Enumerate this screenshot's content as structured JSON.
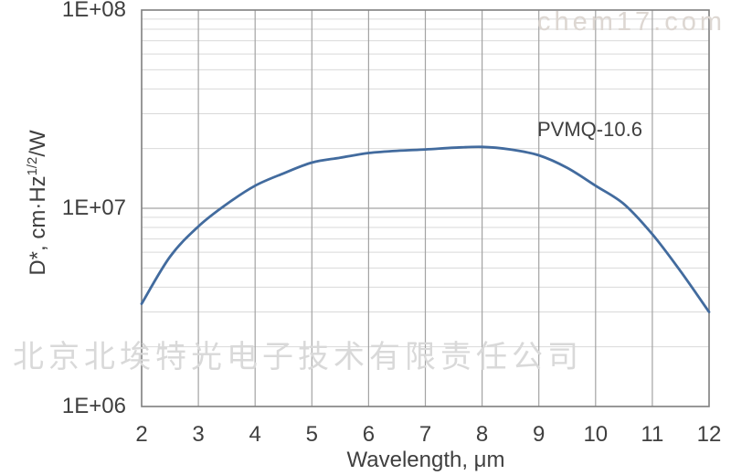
{
  "page": {
    "background": "#ffffff"
  },
  "watermarks": {
    "site": "chem17.com",
    "company": "北京北埃特光电子技术有限责任公司"
  },
  "annotation": {
    "label": "PVMQ-10.6"
  },
  "axis_titles": {
    "x": "Wavelength, μm",
    "y_pre": "D*, cm·Hz",
    "y_sup": "1/2",
    "y_post": "/W"
  },
  "colors": {
    "curve": "#426b9e",
    "grid_minor": "#d9d9d9",
    "grid_major": "#a3a3a3",
    "plot_border": "#7f7f7f",
    "text": "#3f3f3f",
    "watermark_site": "#ddd7d2",
    "watermark_company": "#d9d9d9"
  },
  "chart_data": {
    "type": "line",
    "title": "",
    "xlabel": "Wavelength, μm",
    "ylabel": "D*, cm·Hz^(1/2)/W",
    "x_scale": "linear",
    "y_scale": "log",
    "xlim": [
      2,
      12
    ],
    "ylim": [
      1000000.0,
      100000000.0
    ],
    "x_ticks": [
      2,
      3,
      4,
      5,
      6,
      7,
      8,
      9,
      10,
      11,
      12
    ],
    "y_ticks": [
      {
        "value": 1000000.0,
        "label": "1E+06"
      },
      {
        "value": 10000000.0,
        "label": "1E+07"
      },
      {
        "value": 100000000.0,
        "label": "1E+08"
      }
    ],
    "grid": "major+minor",
    "legend": "none",
    "annotation": "PVMQ-10.6",
    "series": [
      {
        "name": "PVMQ-10.6",
        "x": [
          2,
          2.5,
          3,
          3.5,
          4,
          4.5,
          5,
          5.5,
          6,
          6.5,
          7,
          7.5,
          8,
          8.5,
          9,
          9.5,
          10,
          10.5,
          11,
          11.5,
          12
        ],
        "y": [
          3300000.0,
          5700000.0,
          8100000.0,
          10500000.0,
          13000000.0,
          15000000.0,
          17000000.0,
          18000000.0,
          19000000.0,
          19500000.0,
          19800000.0,
          20200000.0,
          20400000.0,
          19800000.0,
          18500000.0,
          16000000.0,
          13000000.0,
          10500000.0,
          7400000.0,
          4800000.0,
          3000000.0
        ]
      }
    ]
  }
}
